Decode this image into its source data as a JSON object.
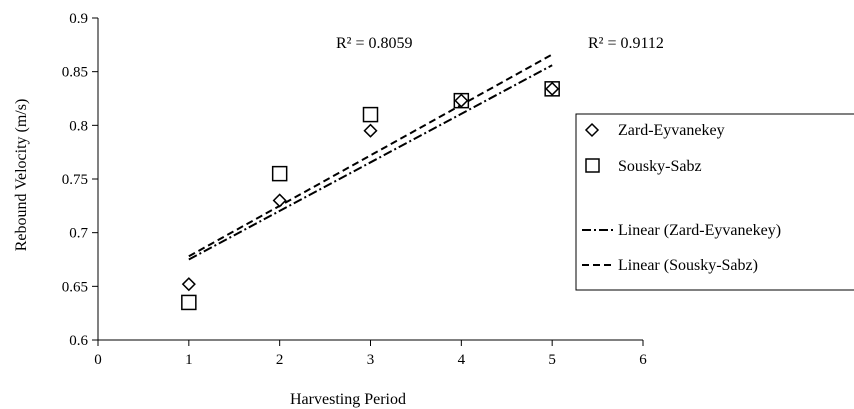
{
  "chart_data": {
    "type": "scatter",
    "title": "",
    "xlabel": "Harvesting Period",
    "ylabel": "Rebound Velocity (m/s)",
    "xlim": [
      0,
      6
    ],
    "ylim": [
      0.6,
      0.9
    ],
    "x_ticks": [
      "0",
      "1",
      "2",
      "3",
      "4",
      "5",
      "6"
    ],
    "y_ticks": [
      "0.6",
      "0.65",
      "0.7",
      "0.75",
      "0.8",
      "0.85",
      "0.9"
    ],
    "grid": false,
    "legend_position": "right",
    "series": [
      {
        "name": "Zard-Eyvanekey",
        "marker": "diamond",
        "x": [
          1,
          2,
          3,
          4,
          5
        ],
        "y": [
          0.652,
          0.73,
          0.795,
          0.823,
          0.834
        ]
      },
      {
        "name": "Sousky-Sabz",
        "marker": "square",
        "x": [
          1,
          2,
          3,
          4,
          5
        ],
        "y": [
          0.635,
          0.755,
          0.81,
          0.823,
          0.834
        ]
      }
    ],
    "trendlines": [
      {
        "name": "Linear (Zard-Eyvanekey)",
        "style": "dash-dot",
        "x": [
          1,
          5
        ],
        "y": [
          0.675,
          0.856
        ]
      },
      {
        "name": "Linear (Sousky-Sabz)",
        "style": "dashed",
        "x": [
          1,
          5
        ],
        "y": [
          0.678,
          0.866
        ]
      }
    ],
    "annotations": [
      "R² = 0.8059",
      "R² = 0.9112"
    ]
  }
}
